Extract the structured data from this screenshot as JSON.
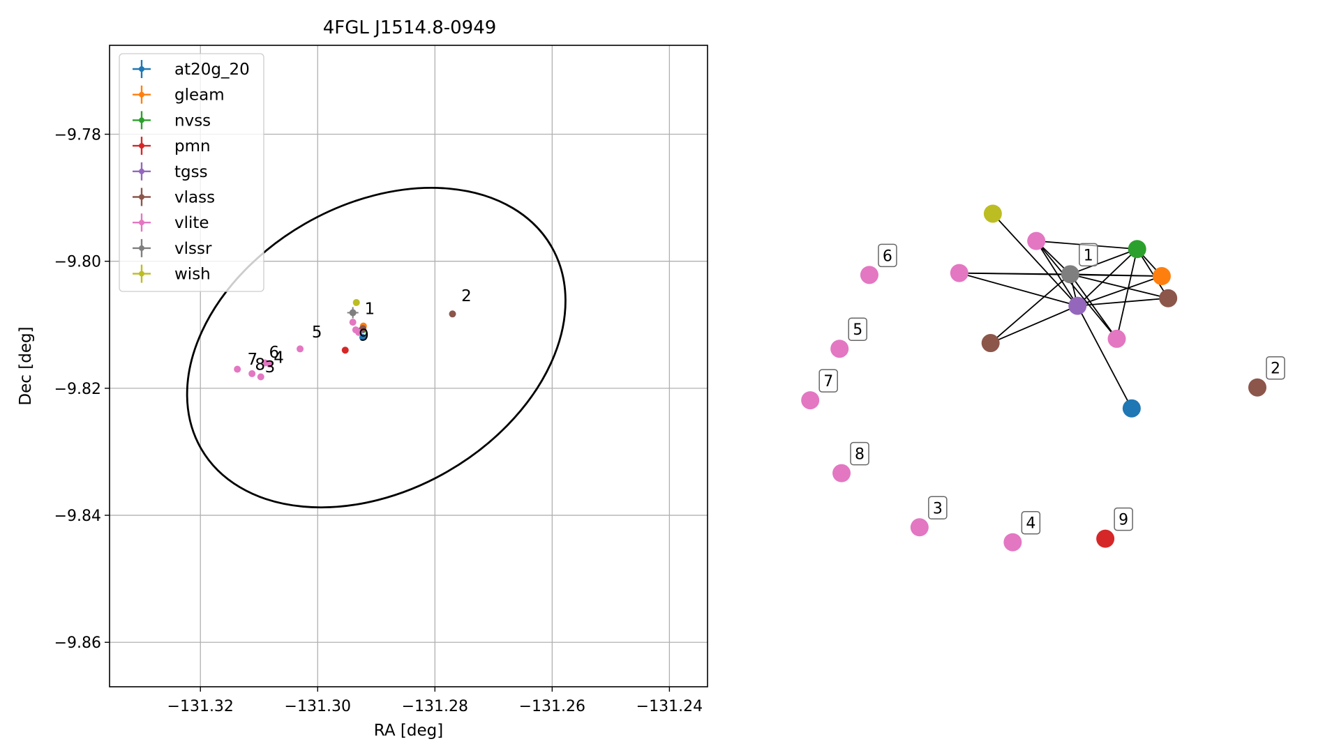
{
  "figure": {
    "title": "4FGL J1514.8-0949"
  },
  "colors": {
    "at20g_20": "#1f77b4",
    "gleam": "#ff7f0e",
    "nvss": "#2ca02c",
    "pmn": "#d62728",
    "tgss": "#9467bd",
    "vlass": "#8c564b",
    "vlite": "#e377c2",
    "vlssr": "#7f7f7f",
    "wish": "#bcbd22"
  },
  "chart_data": [
    {
      "type": "scatter",
      "title": "4FGL J1514.8-0949",
      "xlabel": "RA [deg]",
      "ylabel": "Dec [deg]",
      "xlim": [
        -131.3355,
        -131.2335
      ],
      "ylim": [
        -9.867,
        -9.766
      ],
      "xticks": [
        -131.32,
        -131.3,
        -131.28,
        -131.26,
        -131.24
      ],
      "xtick_labels": [
        "−131.32",
        "−131.30",
        "−131.28",
        "−131.26",
        "−131.24"
      ],
      "yticks": [
        -9.78,
        -9.8,
        -9.82,
        -9.84,
        -9.86
      ],
      "ytick_labels": [
        "−9.78",
        "−9.80",
        "−9.82",
        "−9.84",
        "−9.86"
      ],
      "grid": true,
      "legend": "upper-left",
      "legend_entries": [
        "at20g_20",
        "gleam",
        "nvss",
        "pmn",
        "tgss",
        "vlass",
        "vlite",
        "vlssr",
        "wish"
      ],
      "ellipse": {
        "center": [
          -131.29,
          -9.8136
        ],
        "semi_ra": 0.0345,
        "semi_dec": 0.0225,
        "angle_deg": -30
      },
      "points": [
        {
          "series": "at20g_20",
          "x": -131.2923,
          "y": -9.812
        },
        {
          "series": "gleam",
          "x": -131.2922,
          "y": -9.8102
        },
        {
          "series": "nvss",
          "x": -131.2923,
          "y": -9.8108
        },
        {
          "series": "pmn",
          "x": -131.2953,
          "y": -9.814
        },
        {
          "series": "tgss",
          "x": -131.2928,
          "y": -9.811
        },
        {
          "series": "vlass",
          "x": -131.2923,
          "y": -9.8106
        },
        {
          "series": "vlass",
          "x": -131.277,
          "y": -9.8083
        },
        {
          "series": "vlite",
          "x": -131.294,
          "y": -9.8096
        },
        {
          "series": "vlite",
          "x": -131.293,
          "y": -9.8112
        },
        {
          "series": "vlite",
          "x": -131.2935,
          "y": -9.8108
        },
        {
          "series": "vlite",
          "x": -131.303,
          "y": -9.8138
        },
        {
          "series": "vlite",
          "x": -131.3082,
          "y": -9.8162
        },
        {
          "series": "vlite",
          "x": -131.309,
          "y": -9.816
        },
        {
          "series": "vlite",
          "x": -131.3137,
          "y": -9.817
        },
        {
          "series": "vlite",
          "x": -131.3112,
          "y": -9.8177
        },
        {
          "series": "vlite",
          "x": -131.3097,
          "y": -9.8182
        },
        {
          "series": "vlssr",
          "x": -131.294,
          "y": -9.8081
        },
        {
          "series": "wish",
          "x": -131.2934,
          "y": -9.8065
        }
      ],
      "annotations": [
        {
          "text": "1",
          "x": -131.292,
          "y": -9.8083
        },
        {
          "text": "2",
          "x": -131.2755,
          "y": -9.8063
        },
        {
          "text": "3",
          "x": -131.309,
          "y": -9.8175
        },
        {
          "text": "4",
          "x": -131.3075,
          "y": -9.816
        },
        {
          "text": "5",
          "x": -131.301,
          "y": -9.812
        },
        {
          "text": "6",
          "x": -131.3083,
          "y": -9.8152
        },
        {
          "text": "7",
          "x": -131.312,
          "y": -9.8163
        },
        {
          "text": "8",
          "x": -131.3107,
          "y": -9.8171
        },
        {
          "text": "9",
          "x": -131.293,
          "y": -9.8125
        }
      ]
    },
    {
      "type": "network",
      "nodes": [
        {
          "id": "wish",
          "series": "wish",
          "x": 0.4675,
          "y": 0.873
        },
        {
          "id": "vlite_a",
          "series": "vlite",
          "x": 0.555,
          "y": 0.8155
        },
        {
          "id": "nvss",
          "series": "nvss",
          "x": 0.758,
          "y": 0.7985
        },
        {
          "id": "vlite_b",
          "series": "vlite",
          "x": 0.4,
          "y": 0.748
        },
        {
          "id": "vlssr",
          "series": "vlssr",
          "x": 0.6233,
          "y": 0.7455,
          "label": "1"
        },
        {
          "id": "gleam",
          "series": "gleam",
          "x": 0.8075,
          "y": 0.7415
        },
        {
          "id": "tgss",
          "series": "tgss",
          "x": 0.638,
          "y": 0.679
        },
        {
          "id": "vlass_a",
          "series": "vlass",
          "x": 0.8205,
          "y": 0.695
        },
        {
          "id": "vlite_c",
          "series": "vlite",
          "x": 0.717,
          "y": 0.6095
        },
        {
          "id": "vlass_b",
          "series": "vlass",
          "x": 0.463,
          "y": 0.6005
        },
        {
          "id": "at20g_20",
          "series": "at20g_20",
          "x": 0.747,
          "y": 0.463
        },
        {
          "id": "vlass_2",
          "series": "vlass",
          "x": 1.0,
          "y": 0.507,
          "label": "2"
        },
        {
          "id": "vlite_6",
          "series": "vlite",
          "x": 0.219,
          "y": 0.744,
          "label": "6"
        },
        {
          "id": "vlite_5",
          "series": "vlite",
          "x": 0.159,
          "y": 0.5885,
          "label": "5"
        },
        {
          "id": "vlite_7",
          "series": "vlite",
          "x": 0.1,
          "y": 0.48,
          "label": "7"
        },
        {
          "id": "vlite_8",
          "series": "vlite",
          "x": 0.163,
          "y": 0.3265,
          "label": "8"
        },
        {
          "id": "vlite_3",
          "series": "vlite",
          "x": 0.32,
          "y": 0.2125,
          "label": "3"
        },
        {
          "id": "vlite_4",
          "series": "vlite",
          "x": 0.5075,
          "y": 0.181,
          "label": "4"
        },
        {
          "id": "pmn_9",
          "series": "pmn",
          "x": 0.694,
          "y": 0.1885,
          "label": "9"
        }
      ],
      "edges": [
        [
          "wish",
          "tgss"
        ],
        [
          "vlite_a",
          "nvss"
        ],
        [
          "vlite_a",
          "vlssr"
        ],
        [
          "vlite_a",
          "tgss"
        ],
        [
          "vlite_a",
          "vlite_c"
        ],
        [
          "nvss",
          "vlssr"
        ],
        [
          "nvss",
          "gleam"
        ],
        [
          "nvss",
          "tgss"
        ],
        [
          "nvss",
          "vlass_a"
        ],
        [
          "nvss",
          "vlite_c"
        ],
        [
          "vlite_b",
          "vlssr"
        ],
        [
          "vlite_b",
          "gleam"
        ],
        [
          "vlite_b",
          "tgss"
        ],
        [
          "vlssr",
          "gleam"
        ],
        [
          "vlssr",
          "tgss"
        ],
        [
          "vlssr",
          "vlass_a"
        ],
        [
          "vlssr",
          "vlite_c"
        ],
        [
          "vlssr",
          "vlass_b"
        ],
        [
          "gleam",
          "tgss"
        ],
        [
          "tgss",
          "vlass_a"
        ],
        [
          "tgss",
          "vlass_b"
        ],
        [
          "tgss",
          "at20g_20"
        ]
      ]
    }
  ]
}
